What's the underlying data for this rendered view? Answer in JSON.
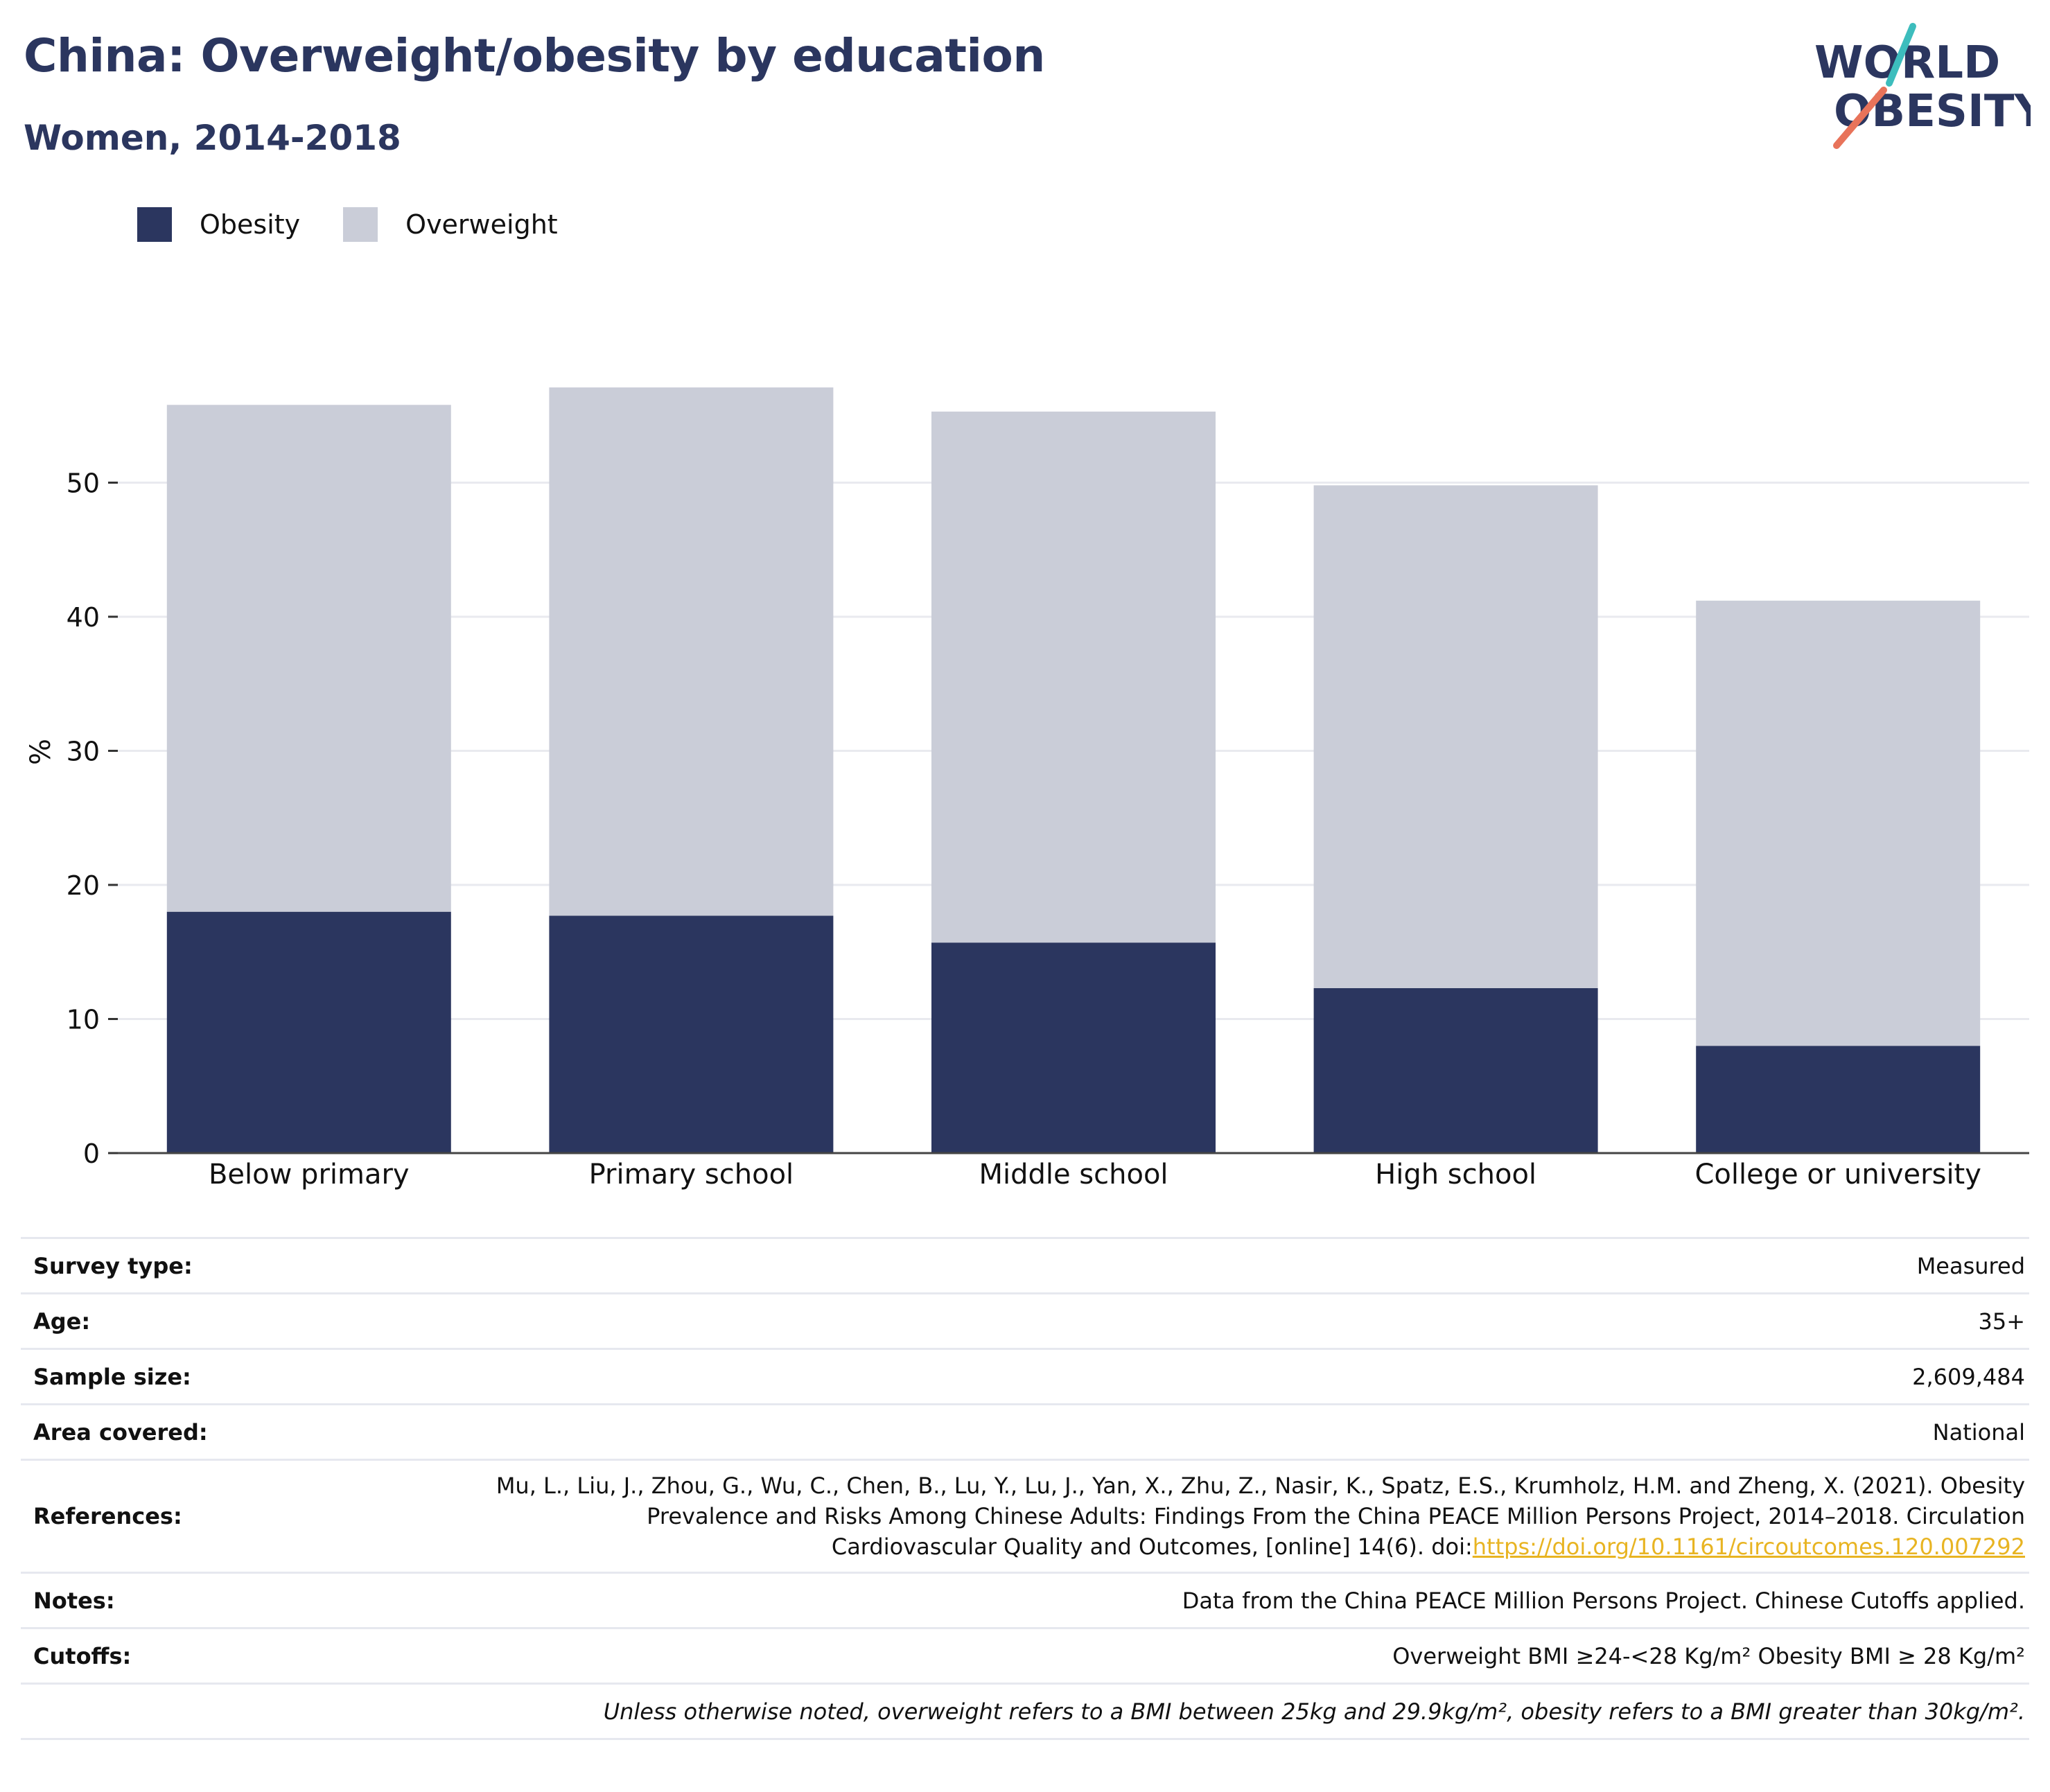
{
  "title": "China: Overweight/obesity by education",
  "subtitle": "Women, 2014-2018",
  "logo": {
    "line1": "WORLD",
    "line2": "OBESITY"
  },
  "colors": {
    "obesity": "#2b365f",
    "overweight": "#cacdd8",
    "title": "#2b365f",
    "link": "#e8b422",
    "logo_teal": "#3dbdbd",
    "logo_coral": "#e8735a"
  },
  "legend": [
    {
      "name": "Obesity",
      "color": "#2b365f"
    },
    {
      "name": "Overweight",
      "color": "#cacdd8"
    }
  ],
  "chart_data": {
    "type": "bar",
    "stacked": true,
    "title": "China: Overweight/obesity by education",
    "subtitle": "Women, 2014-2018",
    "ylabel": "%",
    "xlabel": "",
    "ylim": [
      0,
      60
    ],
    "yticks": [
      0,
      10,
      20,
      30,
      40,
      50
    ],
    "grid": true,
    "legend_position": "top-left",
    "categories": [
      "Below primary",
      "Primary school",
      "Middle school",
      "High school",
      "College or university"
    ],
    "series": [
      {
        "name": "Obesity",
        "values": [
          18.0,
          17.7,
          15.7,
          12.3,
          8.0
        ]
      },
      {
        "name": "Overweight",
        "values": [
          37.8,
          39.4,
          39.6,
          37.5,
          33.2
        ]
      }
    ]
  },
  "info": {
    "rows": [
      {
        "label": "Survey type:",
        "value": "Measured"
      },
      {
        "label": "Age:",
        "value": "35+"
      },
      {
        "label": "Sample size:",
        "value": "2,609,484"
      },
      {
        "label": "Area covered:",
        "value": "National"
      }
    ],
    "references": {
      "label": "References:",
      "line1": "Mu, L., Liu, J., Zhou, G., Wu, C., Chen, B., Lu, Y., Lu, J., Yan, X., Zhu, Z., Nasir, K., Spatz, E.S., Krumholz, H.M. and Zheng, X. (2021). Obesity",
      "line2": "Prevalence and Risks Among Chinese Adults: Findings From the China PEACE Million Persons Project, 2014–2018. Circulation",
      "line3_prefix": "Cardiovascular Quality and Outcomes, [online] 14(6). doi:",
      "link": "https://doi.org/10.1161/circoutcomes.120.007292"
    },
    "notes": {
      "label": "Notes:",
      "value": "Data from the China PEACE Million Persons Project. Chinese Cutoffs applied."
    },
    "cutoffs": {
      "label": "Cutoffs:",
      "value": "Overweight BMI ≥24-<28 Kg/m² Obesity BMI ≥ 28 Kg/m²"
    },
    "disclaimer": "Unless otherwise noted, overweight refers to a BMI between 25kg and 29.9kg/m², obesity refers to a BMI greater than 30kg/m²."
  }
}
